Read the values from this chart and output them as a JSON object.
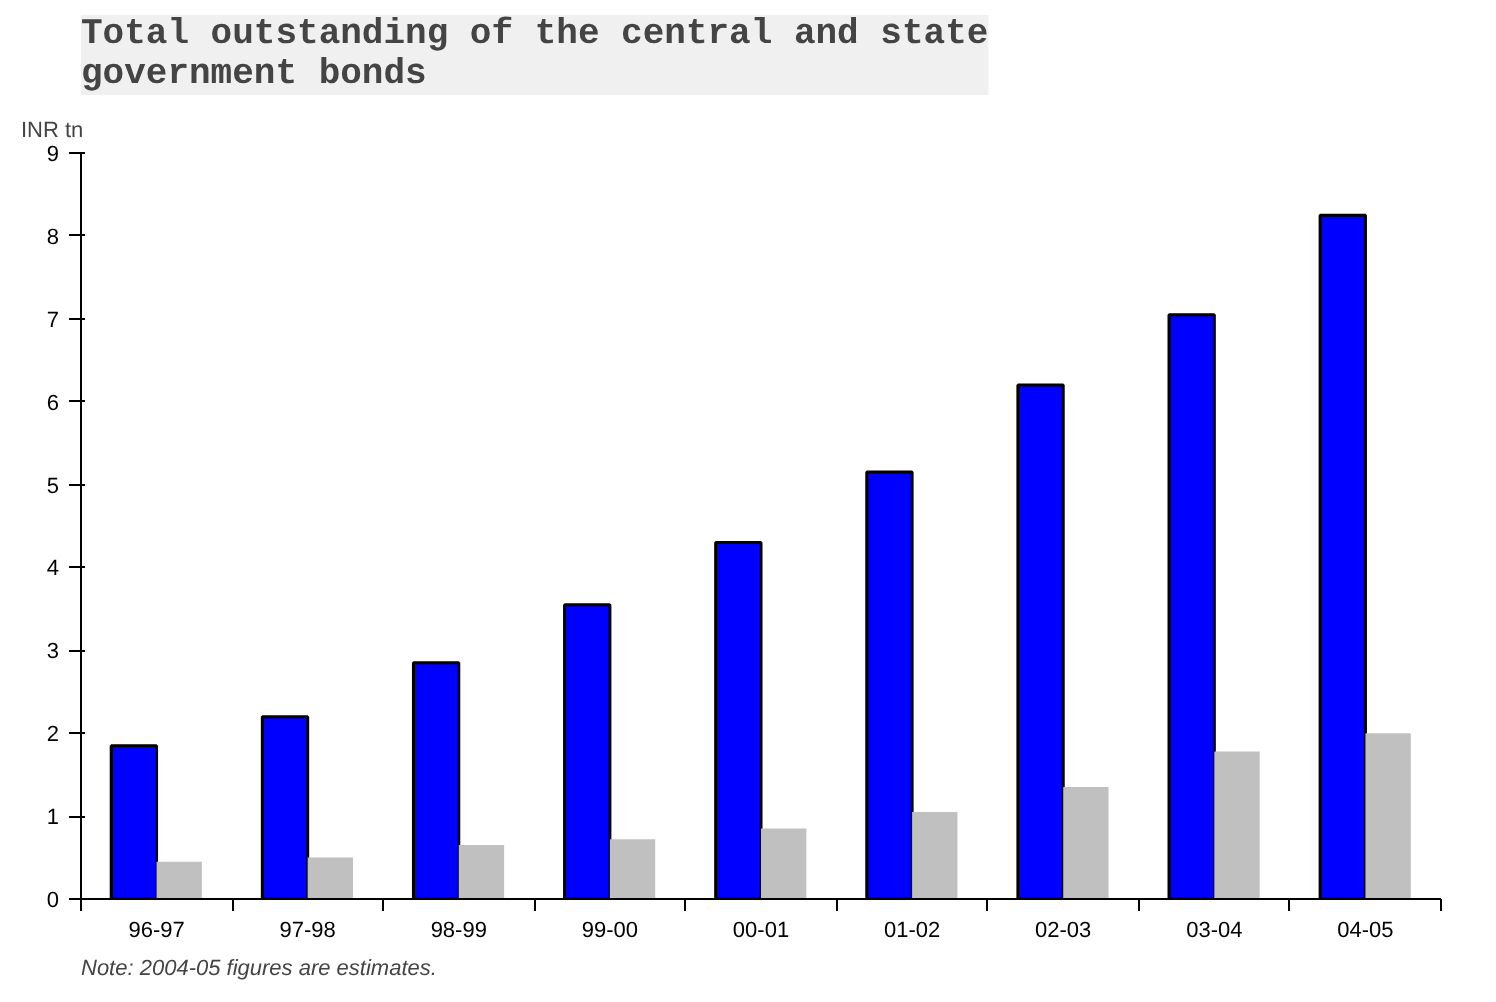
{
  "chart_data": {
    "type": "bar",
    "title": "Total outstanding of the central and state government bonds",
    "ylabel": "INR tn",
    "categories": [
      "96-97",
      "97-98",
      "98-99",
      "99-00",
      "00-01",
      "01-02",
      "02-03",
      "03-04",
      "04-05"
    ],
    "series": [
      {
        "color": "#0000ff",
        "values": [
          1.85,
          2.2,
          2.85,
          3.55,
          4.3,
          5.15,
          6.2,
          7.05,
          8.25
        ]
      },
      {
        "color": "#c0c0c0",
        "values": [
          0.45,
          0.5,
          0.65,
          0.72,
          0.85,
          1.05,
          1.35,
          1.78,
          2.0
        ]
      }
    ],
    "ylim": [
      0,
      9
    ],
    "yticks": [
      0,
      1,
      2,
      3,
      4,
      5,
      6,
      7,
      8,
      9
    ],
    "grid": false,
    "annotations": [
      "Note: 2004-05 figures are estimates."
    ]
  }
}
